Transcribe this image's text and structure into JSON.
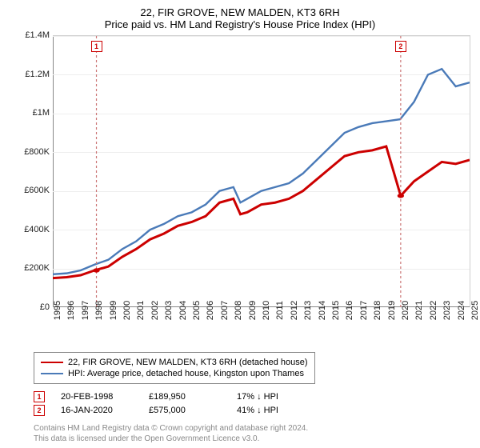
{
  "title": "22, FIR GROVE, NEW MALDEN, KT3 6RH",
  "subtitle": "Price paid vs. HM Land Registry's House Price Index (HPI)",
  "chart": {
    "type": "line",
    "background_color": "#ffffff",
    "grid_color": "#eeeeee",
    "axis_color": "#888888",
    "ylim": [
      0,
      1400000
    ],
    "ytick_step": 200000,
    "ytick_labels": [
      "£0",
      "£200K",
      "£400K",
      "£600K",
      "£800K",
      "£1M",
      "£1.2M",
      "£1.4M"
    ],
    "xlim": [
      1995,
      2025
    ],
    "xticks": [
      1995,
      1996,
      1997,
      1998,
      1999,
      2000,
      2001,
      2002,
      2003,
      2004,
      2005,
      2006,
      2007,
      2008,
      2009,
      2010,
      2011,
      2012,
      2013,
      2014,
      2015,
      2016,
      2017,
      2018,
      2019,
      2020,
      2021,
      2022,
      2023,
      2024,
      2025
    ],
    "series": [
      {
        "name": "property",
        "label": "22, FIR GROVE, NEW MALDEN, KT3 6RH (detached house)",
        "color": "#cc0000",
        "line_width": 1.5,
        "data": [
          [
            1995,
            150000
          ],
          [
            1996,
            155000
          ],
          [
            1997,
            165000
          ],
          [
            1998,
            189950
          ],
          [
            1999,
            210000
          ],
          [
            2000,
            260000
          ],
          [
            2001,
            300000
          ],
          [
            2002,
            350000
          ],
          [
            2003,
            380000
          ],
          [
            2004,
            420000
          ],
          [
            2005,
            440000
          ],
          [
            2006,
            470000
          ],
          [
            2007,
            540000
          ],
          [
            2008,
            560000
          ],
          [
            2008.5,
            480000
          ],
          [
            2009,
            490000
          ],
          [
            2010,
            530000
          ],
          [
            2011,
            540000
          ],
          [
            2012,
            560000
          ],
          [
            2013,
            600000
          ],
          [
            2014,
            660000
          ],
          [
            2015,
            720000
          ],
          [
            2016,
            780000
          ],
          [
            2017,
            800000
          ],
          [
            2018,
            810000
          ],
          [
            2019,
            830000
          ],
          [
            2020.04,
            575000
          ],
          [
            2021,
            650000
          ],
          [
            2022,
            700000
          ],
          [
            2023,
            750000
          ],
          [
            2024,
            740000
          ],
          [
            2025,
            760000
          ]
        ]
      },
      {
        "name": "hpi",
        "label": "HPI: Average price, detached house, Kingston upon Thames",
        "color": "#4a7ab8",
        "line_width": 1.2,
        "data": [
          [
            1995,
            170000
          ],
          [
            1996,
            175000
          ],
          [
            1997,
            190000
          ],
          [
            1998,
            220000
          ],
          [
            1999,
            245000
          ],
          [
            2000,
            300000
          ],
          [
            2001,
            340000
          ],
          [
            2002,
            400000
          ],
          [
            2003,
            430000
          ],
          [
            2004,
            470000
          ],
          [
            2005,
            490000
          ],
          [
            2006,
            530000
          ],
          [
            2007,
            600000
          ],
          [
            2008,
            620000
          ],
          [
            2008.5,
            540000
          ],
          [
            2009,
            560000
          ],
          [
            2010,
            600000
          ],
          [
            2011,
            620000
          ],
          [
            2012,
            640000
          ],
          [
            2013,
            690000
          ],
          [
            2014,
            760000
          ],
          [
            2015,
            830000
          ],
          [
            2016,
            900000
          ],
          [
            2017,
            930000
          ],
          [
            2018,
            950000
          ],
          [
            2019,
            960000
          ],
          [
            2020,
            970000
          ],
          [
            2021,
            1060000
          ],
          [
            2022,
            1200000
          ],
          [
            2023,
            1230000
          ],
          [
            2024,
            1140000
          ],
          [
            2025,
            1160000
          ]
        ]
      }
    ],
    "sale_markers": [
      {
        "n": "1",
        "x": 1998.14,
        "date": "20-FEB-1998",
        "price": "£189,950",
        "diff": "17% ↓ HPI",
        "point_y": 189950
      },
      {
        "n": "2",
        "x": 2020.04,
        "date": "16-JAN-2020",
        "price": "£575,000",
        "diff": "41% ↓ HPI",
        "point_y": 575000
      }
    ],
    "marker_box_color": "#cc0000",
    "marker_line_color": "#cc7777",
    "dot_color": "#cc0000",
    "label_fontsize": 11,
    "title_fontsize": 13
  },
  "footer": {
    "line1": "Contains HM Land Registry data © Crown copyright and database right 2024.",
    "line2": "This data is licensed under the Open Government Licence v3.0."
  }
}
